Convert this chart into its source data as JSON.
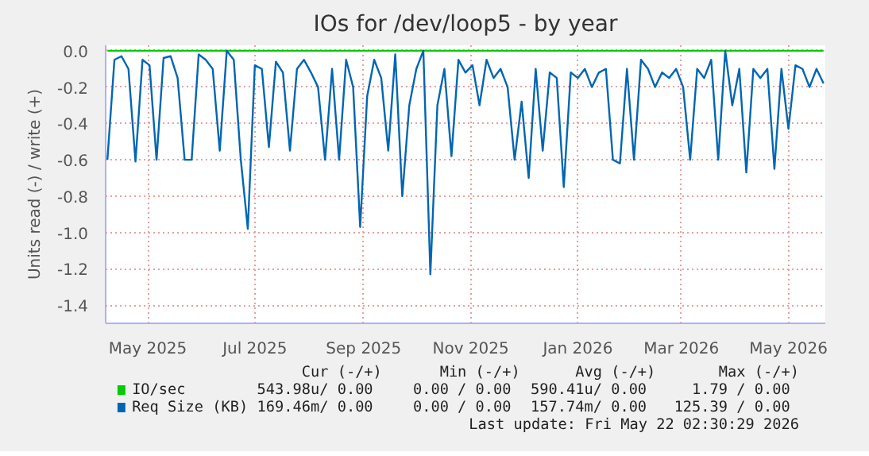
{
  "chart_data": {
    "type": "line",
    "title": "IOs for /dev/loop5 - by year",
    "ylabel": "Units read (-) / write (+)",
    "xlim": [
      "2025-04-07",
      "2026-05-22"
    ],
    "xticks": [
      {
        "value": "2025-05-01",
        "label": "May 2025"
      },
      {
        "value": "2025-07-01",
        "label": "Jul 2025"
      },
      {
        "value": "2025-09-01",
        "label": "Sep 2025"
      },
      {
        "value": "2025-11-01",
        "label": "Nov 2025"
      },
      {
        "value": "2026-01-01",
        "label": "Jan 2026"
      },
      {
        "value": "2026-03-01",
        "label": "Mar 2026"
      },
      {
        "value": "2026-05-01",
        "label": "May 2026"
      }
    ],
    "ylim": [
      -1.5,
      0.03
    ],
    "yticks": [
      {
        "value": 0,
        "label": "0.0"
      },
      {
        "value": -0.2,
        "label": "-0.2"
      },
      {
        "value": -0.4,
        "label": "-0.4"
      },
      {
        "value": -0.6,
        "label": "-0.6"
      },
      {
        "value": -0.8,
        "label": "-0.8"
      },
      {
        "value": -1.0,
        "label": "-1.0"
      },
      {
        "value": -1.2,
        "label": "-1.2"
      },
      {
        "value": -1.4,
        "label": "-1.4"
      }
    ],
    "grid": true,
    "legend": "bottom",
    "series": [
      {
        "name": "IO/sec",
        "color": "#00cc00",
        "x": [
          "2025-04-08",
          "2026-05-21"
        ],
        "values": [
          0,
          0
        ]
      },
      {
        "name": "Req Size (KB)",
        "color": "#0066b3",
        "x": [
          "2025-04-08",
          "2025-04-12",
          "2025-04-16",
          "2025-04-20",
          "2025-04-24",
          "2025-04-28",
          "2025-05-02",
          "2025-05-06",
          "2025-05-10",
          "2025-05-14",
          "2025-05-18",
          "2025-05-22",
          "2025-05-26",
          "2025-05-30",
          "2025-06-03",
          "2025-06-07",
          "2025-06-11",
          "2025-06-15",
          "2025-06-19",
          "2025-06-23",
          "2025-06-27",
          "2025-07-01",
          "2025-07-05",
          "2025-07-09",
          "2025-07-13",
          "2025-07-17",
          "2025-07-21",
          "2025-07-25",
          "2025-07-29",
          "2025-08-02",
          "2025-08-06",
          "2025-08-10",
          "2025-08-14",
          "2025-08-18",
          "2025-08-22",
          "2025-08-26",
          "2025-08-30",
          "2025-09-03",
          "2025-09-07",
          "2025-09-11",
          "2025-09-15",
          "2025-09-19",
          "2025-09-23",
          "2025-09-27",
          "2025-10-01",
          "2025-10-05",
          "2025-10-09",
          "2025-10-13",
          "2025-10-17",
          "2025-10-21",
          "2025-10-25",
          "2025-10-29",
          "2025-11-02",
          "2025-11-06",
          "2025-11-10",
          "2025-11-14",
          "2025-11-18",
          "2025-11-22",
          "2025-11-26",
          "2025-11-30",
          "2025-12-04",
          "2025-12-08",
          "2025-12-12",
          "2025-12-16",
          "2025-12-20",
          "2025-12-24",
          "2025-12-28",
          "2026-01-01",
          "2026-01-05",
          "2026-01-09",
          "2026-01-13",
          "2026-01-17",
          "2026-01-21",
          "2026-01-25",
          "2026-01-29",
          "2026-02-02",
          "2026-02-06",
          "2026-02-10",
          "2026-02-14",
          "2026-02-18",
          "2026-02-22",
          "2026-02-26",
          "2026-03-02",
          "2026-03-06",
          "2026-03-10",
          "2026-03-14",
          "2026-03-18",
          "2026-03-22",
          "2026-03-26",
          "2026-03-30",
          "2026-04-03",
          "2026-04-07",
          "2026-04-11",
          "2026-04-15",
          "2026-04-19",
          "2026-04-23",
          "2026-04-27",
          "2026-05-01",
          "2026-05-05",
          "2026-05-09",
          "2026-05-13",
          "2026-05-17",
          "2026-05-21"
        ],
        "values": [
          -0.6,
          -0.05,
          -0.03,
          -0.1,
          -0.61,
          -0.05,
          -0.08,
          -0.6,
          -0.04,
          -0.03,
          -0.15,
          -0.6,
          -0.6,
          -0.02,
          -0.05,
          -0.1,
          -0.55,
          0.0,
          -0.05,
          -0.6,
          -0.98,
          -0.08,
          -0.1,
          -0.53,
          -0.06,
          -0.12,
          -0.55,
          -0.1,
          -0.05,
          -0.12,
          -0.2,
          -0.6,
          -0.1,
          -0.6,
          -0.05,
          -0.2,
          -0.97,
          -0.25,
          -0.05,
          -0.15,
          -0.55,
          -0.02,
          -0.8,
          -0.3,
          -0.1,
          0.0,
          -1.23,
          -0.3,
          -0.1,
          -0.58,
          -0.05,
          -0.12,
          -0.08,
          -0.3,
          -0.05,
          -0.15,
          -0.1,
          -0.2,
          -0.6,
          -0.28,
          -0.7,
          -0.1,
          -0.55,
          -0.12,
          -0.15,
          -0.75,
          -0.12,
          -0.15,
          -0.1,
          -0.2,
          -0.12,
          -0.1,
          -0.6,
          -0.62,
          -0.1,
          -0.6,
          -0.05,
          -0.1,
          -0.2,
          -0.12,
          -0.15,
          -0.1,
          -0.2,
          -0.6,
          -0.1,
          -0.15,
          -0.05,
          -0.6,
          0.0,
          -0.3,
          -0.1,
          -0.67,
          -0.1,
          -0.15,
          -0.1,
          -0.65,
          -0.1,
          -0.43,
          -0.08,
          -0.1,
          -0.2,
          -0.1,
          -0.18
        ]
      }
    ],
    "annotations": [
      "Cur (-/+)",
      "Min (-/+)",
      "Avg (-/+)",
      "Max (-/+)",
      "543.98u/  0.00",
      "0.00 /  0.00",
      "590.41u/  0.00",
      "1.79 /  0.00",
      "169.46m/  0.00",
      "0.00 /  0.00",
      "157.74m/  0.00",
      "125.39 /  0.00",
      "Last update: Fri May 22 02:30:29 2026"
    ]
  }
}
